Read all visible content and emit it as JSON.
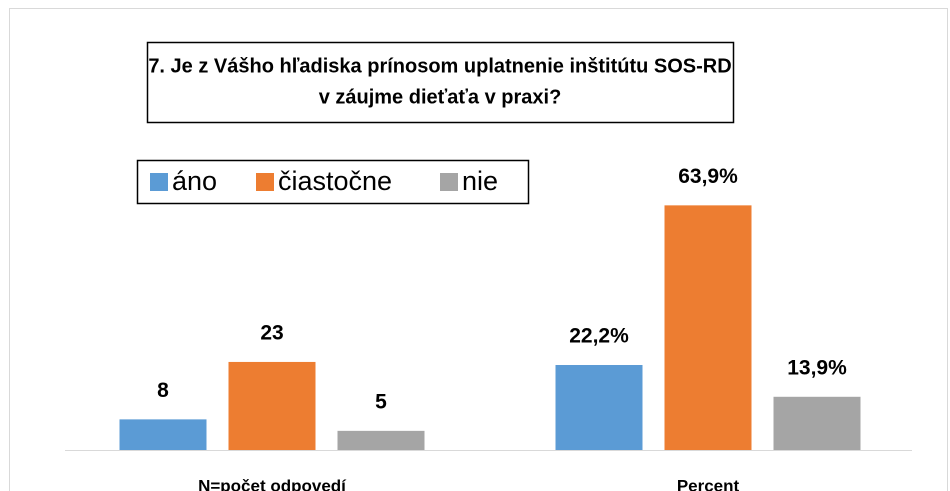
{
  "chart_data": {
    "type": "bar",
    "title": [
      "7. Je z Vášho hľadiska prínosom uplatnenie inštitútu SOS-RD",
      "v záujme dieťaťa v praxi?"
    ],
    "categories": [
      "N=počet odpovedí",
      "Percent"
    ],
    "series": [
      {
        "name": "áno",
        "color": "#5b9bd5",
        "values": [
          8,
          22.2
        ],
        "value_labels": [
          "8",
          "22,2%"
        ]
      },
      {
        "name": "čiastočne",
        "color": "#ed7d31",
        "values": [
          23,
          63.9
        ],
        "value_labels": [
          "23",
          "63,9%"
        ]
      },
      {
        "name": "nie",
        "color": "#a5a5a5",
        "values": [
          5,
          13.9
        ],
        "value_labels": [
          "5",
          "13,9%"
        ]
      }
    ],
    "ylim": [
      0,
      70
    ],
    "legend": "top-left"
  }
}
